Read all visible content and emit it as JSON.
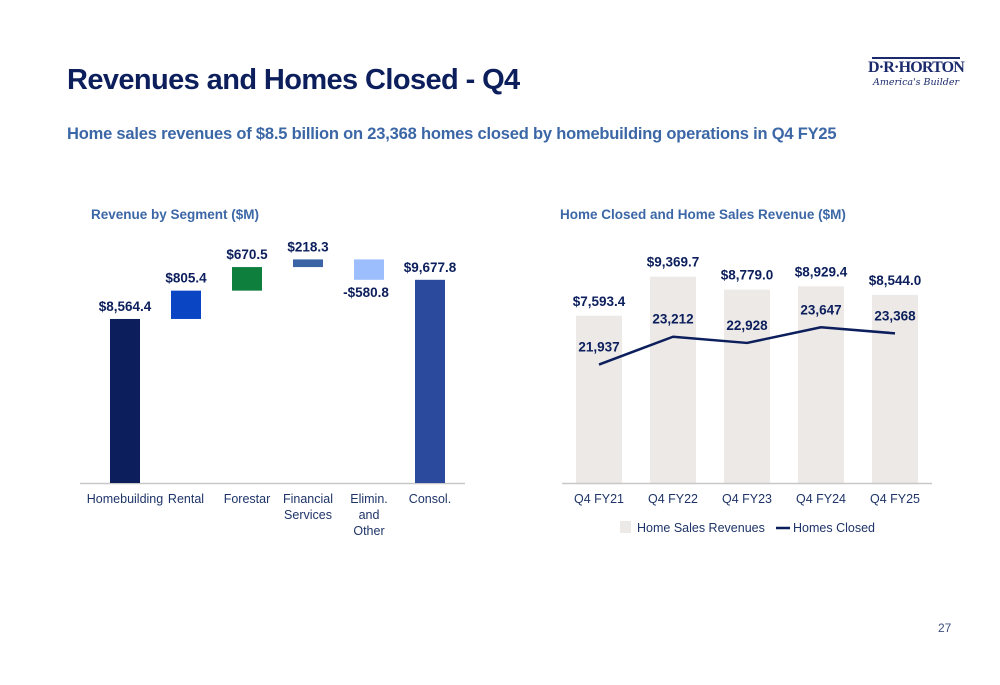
{
  "header": {
    "title": "Revenues and Homes Closed - Q4",
    "subtitle": "Home sales revenues of $8.5 billion on 23,368 homes closed by homebuilding operations in Q4 FY25",
    "logo_name": "D·R·HORTON",
    "logo_tagline": "America's Builder"
  },
  "page_number": "27",
  "colors": {
    "title": "#0c1f5c",
    "subtitle": "#3c67a6",
    "revenue_bar": "#ece9e6",
    "homes_line": "#0c1f5c"
  },
  "chart_data": [
    {
      "type": "bar",
      "subtype": "waterfall",
      "title": "Revenue by Segment ($M)",
      "xlabel": "",
      "ylabel": "",
      "categories": [
        "Homebuilding",
        "Rental",
        "Forestar",
        "Financial Services",
        "Elimin. and Other",
        "Consol."
      ],
      "category_lines": [
        [
          "Homebuilding"
        ],
        [
          "Rental"
        ],
        [
          "Forestar"
        ],
        [
          "Financial",
          "Services"
        ],
        [
          "Elimin.",
          "and",
          "Other"
        ],
        [
          "Consol."
        ]
      ],
      "values": [
        8564.4,
        805.4,
        670.5,
        218.3,
        -580.8,
        9677.8
      ],
      "labels": [
        "$8,564.4",
        "$805.4",
        "$670.5",
        "$218.3",
        "-$580.8",
        "$9,677.8"
      ],
      "bar_kind": [
        "total",
        "delta",
        "delta",
        "delta",
        "delta",
        "total"
      ],
      "bar_colors": [
        "#0c1f5c",
        "#0a46c4",
        "#0f7f3e",
        "#3a64a6",
        "#9dbefc",
        "#2b4a9e"
      ],
      "ylim": [
        3900,
        9900
      ],
      "grid": false,
      "legend": "none"
    },
    {
      "type": "bar",
      "title": "Home Closed and Home Sales Revenue ($M)",
      "xlabel": "",
      "ylabel": "",
      "categories": [
        "Q4 FY21",
        "Q4 FY22",
        "Q4 FY23",
        "Q4 FY24",
        "Q4 FY25"
      ],
      "series": [
        {
          "name": "Home Sales Revenues",
          "type": "bar",
          "values": [
            7593.4,
            9369.7,
            8779.0,
            8929.4,
            8544.0
          ],
          "labels": [
            "$7,593.4",
            "$9,369.7",
            "$8,779.0",
            "$8,929.4",
            "$8,544.0"
          ],
          "color": "#ece9e6"
        },
        {
          "name": "Homes Closed",
          "type": "line",
          "axis": "secondary",
          "values": [
            21937,
            23212,
            22928,
            23647,
            23368
          ],
          "labels": [
            "21,937",
            "23,212",
            "22,928",
            "23,647",
            "23,368"
          ],
          "color": "#0c1f5c"
        }
      ],
      "ylim": [
        0,
        9400
      ],
      "y2lim": [
        16500,
        26000
      ],
      "grid": false,
      "legend": "bottom-center"
    }
  ]
}
